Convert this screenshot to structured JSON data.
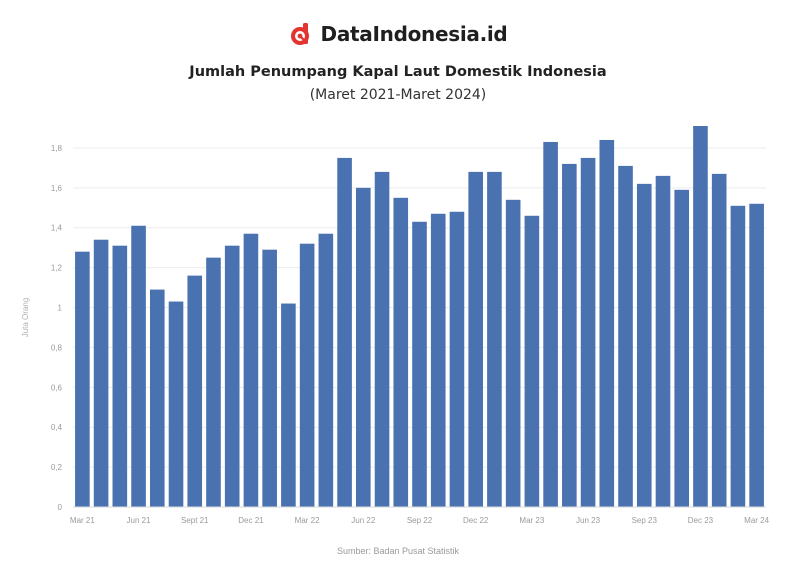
{
  "brand": {
    "name": "DataIndonesia.id",
    "accent_color": "#e3342f",
    "logo_icon": "dataindonesia-logo-icon"
  },
  "chart_data": {
    "type": "bar",
    "title": "Jumlah Penumpang Kapal Laut Domestik Indonesia",
    "subtitle": "(Maret 2021-Maret 2024)",
    "ylabel": "Juta Orang",
    "xlabel": "",
    "source": "Sumber: Badan Pusat Statistik",
    "ylim": [
      0,
      1.9
    ],
    "yticks": [
      0,
      0.2,
      0.4,
      0.6,
      0.8,
      1,
      1.2,
      1.4,
      1.6,
      1.8
    ],
    "ytick_labels": [
      "0",
      "0,2",
      "0,4",
      "0,6",
      "0,8",
      "1",
      "1,2",
      "1,4",
      "1,6",
      "1,8"
    ],
    "bar_color": "#4a72b0",
    "grid": true,
    "categories": [
      "Mar 21",
      "Apr 21",
      "May 21",
      "Jun 21",
      "Jul 21",
      "Aug 21",
      "Sept 21",
      "Oct 21",
      "Nov 21",
      "Dec 21",
      "Jan 22",
      "Feb 22",
      "Mar 22",
      "Apr 22",
      "May 22",
      "Jun 22",
      "Jul 22",
      "Aug 22",
      "Sep 22",
      "Oct 22",
      "Nov 22",
      "Dec 22",
      "Jan 23",
      "Feb 23",
      "Mar 23",
      "Apr 23",
      "May 23",
      "Jun 23",
      "Jul 23",
      "Aug 23",
      "Sep 23",
      "Oct 23",
      "Nov 23",
      "Dec 23",
      "Jan 24",
      "Feb 24",
      "Mar 24"
    ],
    "tick_labels": [
      "Mar 21",
      "",
      "",
      "Jun 21",
      "",
      "",
      "Sept 21",
      "",
      "",
      "Dec 21",
      "",
      "",
      "Mar 22",
      "",
      "",
      "Jun 22",
      "",
      "",
      "Sep 22",
      "",
      "",
      "Dec 22",
      "",
      "",
      "Mar 23",
      "",
      "",
      "Jun 23",
      "",
      "",
      "Sep 23",
      "",
      "",
      "Dec 23",
      "",
      "",
      "Mar 24"
    ],
    "values": [
      1.28,
      1.34,
      1.31,
      1.41,
      1.09,
      1.03,
      1.16,
      1.25,
      1.31,
      1.37,
      1.29,
      1.02,
      1.32,
      1.37,
      1.75,
      1.6,
      1.68,
      1.55,
      1.43,
      1.47,
      1.48,
      1.68,
      1.68,
      1.54,
      1.46,
      1.83,
      1.72,
      1.75,
      1.84,
      1.71,
      1.62,
      1.66,
      1.59,
      1.91,
      1.67,
      1.51,
      1.52
    ]
  }
}
